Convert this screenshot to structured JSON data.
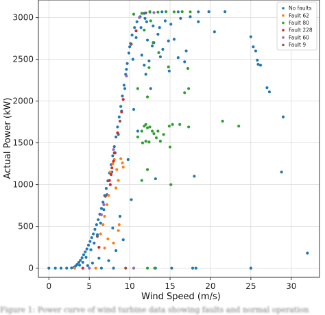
{
  "chart_data": {
    "type": "scatter",
    "title": "",
    "xlabel": "Wind Speed (m/s)",
    "ylabel": "Actual Power (kW)",
    "xlim": [
      -1.3,
      33.5
    ],
    "ylim": [
      -110,
      3210
    ],
    "xticks": [
      0,
      5,
      10,
      15,
      20,
      25,
      30
    ],
    "yticks": [
      0,
      500,
      1000,
      1500,
      2000,
      2500,
      3000
    ],
    "grid": true,
    "legend_position": "top-right",
    "series": [
      {
        "name": "No faults",
        "color": "#1f77b4",
        "points": [
          [
            0.0,
            0
          ],
          [
            0.8,
            0
          ],
          [
            1.5,
            0
          ],
          [
            2.2,
            0
          ],
          [
            2.8,
            2
          ],
          [
            3.1,
            10
          ],
          [
            3.3,
            25
          ],
          [
            3.5,
            45
          ],
          [
            3.7,
            70
          ],
          [
            3.9,
            95
          ],
          [
            4.1,
            125
          ],
          [
            4.3,
            160
          ],
          [
            4.5,
            195
          ],
          [
            4.7,
            230
          ],
          [
            4.9,
            275
          ],
          [
            5.1,
            320
          ],
          [
            5.3,
            365
          ],
          [
            5.5,
            410
          ],
          [
            5.7,
            465
          ],
          [
            5.9,
            520
          ],
          [
            6.1,
            580
          ],
          [
            6.3,
            645
          ],
          [
            6.5,
            715
          ],
          [
            6.7,
            790
          ],
          [
            6.9,
            870
          ],
          [
            7.1,
            955
          ],
          [
            7.3,
            1045
          ],
          [
            7.5,
            1140
          ],
          [
            7.7,
            1240
          ],
          [
            7.9,
            1345
          ],
          [
            8.1,
            1455
          ],
          [
            8.3,
            1570
          ],
          [
            8.5,
            1690
          ],
          [
            8.7,
            1810
          ],
          [
            8.9,
            1935
          ],
          [
            9.1,
            2060
          ],
          [
            9.3,
            2190
          ],
          [
            9.5,
            2320
          ],
          [
            9.7,
            2450
          ],
          [
            9.9,
            2575
          ],
          [
            10.1,
            2690
          ],
          [
            10.3,
            2790
          ],
          [
            10.6,
            2880
          ],
          [
            10.9,
            2950
          ],
          [
            11.3,
            3010
          ],
          [
            11.8,
            3050
          ],
          [
            12.5,
            3065
          ],
          [
            14.0,
            3068
          ],
          [
            16.0,
            3068
          ],
          [
            18.5,
            3068
          ],
          [
            19.8,
            3070
          ],
          [
            21.8,
            3070
          ],
          [
            20.5,
            2830
          ],
          [
            25.0,
            2770
          ],
          [
            25.3,
            2650
          ],
          [
            25.6,
            2600
          ],
          [
            25.9,
            2440
          ],
          [
            26.2,
            2430
          ],
          [
            25.8,
            2490
          ],
          [
            27.0,
            2160
          ],
          [
            27.3,
            2110
          ],
          [
            29.0,
            1810
          ],
          [
            28.8,
            1150
          ],
          [
            32.0,
            180
          ],
          [
            25.0,
            0
          ],
          [
            17.8,
            0
          ],
          [
            18.2,
            0
          ],
          [
            15.2,
            0
          ],
          [
            13.2,
            0
          ],
          [
            8.0,
            0
          ],
          [
            6.5,
            0
          ],
          [
            11.5,
            2550
          ],
          [
            12.0,
            2320
          ],
          [
            12.6,
            2150
          ],
          [
            13.0,
            2700
          ],
          [
            13.8,
            2530
          ],
          [
            12.8,
            2660
          ],
          [
            12.2,
            2730
          ],
          [
            11.8,
            2430
          ],
          [
            13.5,
            2800
          ],
          [
            14.8,
            2720
          ],
          [
            15.5,
            2740
          ],
          [
            16.0,
            2520
          ],
          [
            17.0,
            2600
          ],
          [
            16.8,
            2470
          ],
          [
            18.5,
            2950
          ],
          [
            10.5,
            1900
          ],
          [
            11.0,
            1640
          ],
          [
            9.8,
            1300
          ],
          [
            8.8,
            620
          ],
          [
            7.9,
            480
          ],
          [
            8.3,
            210
          ],
          [
            6.2,
            120
          ],
          [
            7.4,
            90
          ],
          [
            5.4,
            60
          ],
          [
            4.8,
            30
          ],
          [
            9.2,
            340
          ],
          [
            10.2,
            820
          ],
          [
            13.2,
            1070
          ],
          [
            18.0,
            1100
          ],
          [
            12.1,
            2950
          ],
          [
            12.9,
            2900
          ],
          [
            13.7,
            2880
          ],
          [
            14.4,
            2960
          ],
          [
            15.1,
            2920
          ],
          [
            16.3,
            2990
          ],
          [
            17.5,
            3010
          ],
          [
            11.4,
            2880
          ],
          [
            10.8,
            2760
          ],
          [
            11.9,
            2990
          ],
          [
            10.0,
            2650
          ],
          [
            9.6,
            2380
          ],
          [
            9.4,
            2150
          ],
          [
            9.0,
            1880
          ],
          [
            8.6,
            1600
          ],
          [
            8.2,
            1380
          ],
          [
            7.8,
            1150
          ],
          [
            7.2,
            880
          ],
          [
            6.8,
            700
          ],
          [
            6.4,
            540
          ],
          [
            6.0,
            400
          ],
          [
            5.6,
            300
          ],
          [
            5.2,
            220
          ],
          [
            4.6,
            130
          ],
          [
            4.2,
            70
          ],
          [
            3.8,
            35
          ],
          [
            12.4,
            2480
          ],
          [
            14.1,
            2620
          ],
          [
            14.9,
            2360
          ],
          [
            10.4,
            2500
          ]
        ]
      },
      {
        "name": "Fault 62",
        "color": "#ff7f0e",
        "points": [
          [
            7.6,
            1150
          ],
          [
            7.9,
            1250
          ],
          [
            8.1,
            1300
          ],
          [
            8.4,
            1180
          ],
          [
            8.6,
            1050
          ],
          [
            8.9,
            1310
          ],
          [
            9.1,
            1260
          ],
          [
            8.3,
            960
          ],
          [
            7.4,
            870
          ],
          [
            7.2,
            760
          ],
          [
            6.9,
            620
          ],
          [
            6.7,
            520
          ],
          [
            6.4,
            410
          ],
          [
            8.7,
            520
          ],
          [
            8.6,
            450
          ],
          [
            9.2,
            1210
          ],
          [
            6.9,
            240
          ],
          [
            7.3,
            350
          ],
          [
            8.0,
            300
          ],
          [
            5.8,
            0
          ],
          [
            3.2,
            0
          ]
        ]
      },
      {
        "name": "Fault 80",
        "color": "#2ca02c",
        "points": [
          [
            11.0,
            1570
          ],
          [
            11.5,
            1640
          ],
          [
            11.8,
            1700
          ],
          [
            12.0,
            1720
          ],
          [
            12.2,
            1680
          ],
          [
            12.5,
            1690
          ],
          [
            12.8,
            1640
          ],
          [
            13.0,
            1610
          ],
          [
            13.3,
            1560
          ],
          [
            13.5,
            1640
          ],
          [
            12.4,
            1510
          ],
          [
            12.0,
            1520
          ],
          [
            11.6,
            1500
          ],
          [
            13.8,
            1520
          ],
          [
            14.2,
            1600
          ],
          [
            14.9,
            1700
          ],
          [
            15.3,
            1720
          ],
          [
            16.2,
            1720
          ],
          [
            17.3,
            1690
          ],
          [
            21.5,
            1760
          ],
          [
            23.5,
            1700
          ],
          [
            15.0,
            1450
          ],
          [
            12.4,
            2400
          ],
          [
            12.9,
            2700
          ],
          [
            13.6,
            2580
          ],
          [
            14.8,
            2410
          ],
          [
            17.2,
            2390
          ],
          [
            17.3,
            2150
          ],
          [
            16.8,
            2100
          ],
          [
            11.0,
            2150
          ],
          [
            12.2,
            2050
          ],
          [
            12.2,
            1180
          ],
          [
            15.1,
            1000
          ],
          [
            11.5,
            1050
          ],
          [
            11.5,
            3050
          ],
          [
            12.5,
            3070
          ],
          [
            13.5,
            3065
          ],
          [
            14.5,
            3070
          ],
          [
            15.5,
            3068
          ],
          [
            16.5,
            3070
          ],
          [
            17.5,
            3068
          ],
          [
            11.8,
            2850
          ],
          [
            12.6,
            2960
          ],
          [
            10.5,
            3040
          ],
          [
            12.2,
            0
          ],
          [
            13.1,
            0
          ]
        ]
      },
      {
        "name": "Fault 228",
        "color": "#d62728",
        "points": [
          [
            7.5,
            1050
          ],
          [
            7.7,
            1120
          ],
          [
            7.8,
            1200
          ],
          [
            8.0,
            1280
          ],
          [
            7.6,
            1000
          ],
          [
            8.1,
            1380
          ],
          [
            8.5,
            1620
          ],
          [
            9.2,
            2020
          ],
          [
            10.8,
            2840
          ],
          [
            9.0,
            1870
          ],
          [
            6.2,
            250
          ],
          [
            4.2,
            0
          ]
        ]
      },
      {
        "name": "Fault 60",
        "color": "#9467bd",
        "points": [
          [
            6.5,
            640
          ],
          [
            6.8,
            760
          ],
          [
            8.0,
            1420
          ],
          [
            9.6,
            2300
          ],
          [
            11.2,
            3000
          ],
          [
            13.0,
            3060
          ],
          [
            5.0,
            0
          ],
          [
            10.5,
            0
          ]
        ]
      },
      {
        "name": "Fault 9",
        "color": "#8c564b",
        "points": [
          [
            6.0,
            380
          ],
          [
            7.0,
            860
          ],
          [
            8.8,
            1760
          ],
          [
            10.2,
            2680
          ],
          [
            12.0,
            3055
          ],
          [
            9.5,
            0
          ]
        ]
      }
    ]
  },
  "caption": "Figure 1: Power curve of wind turbine data showing faults and normal operation"
}
